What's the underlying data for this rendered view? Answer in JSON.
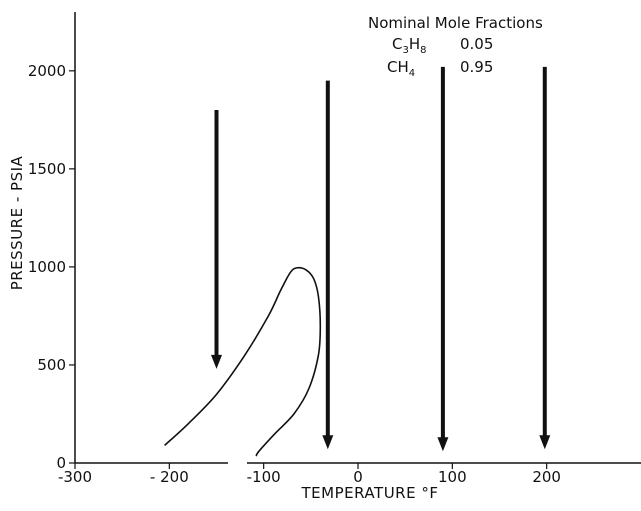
{
  "chart_data": {
    "type": "line",
    "xlabel": "TEMPERATURE °F",
    "ylabel": "PRESSURE - PSIA",
    "xlim": [
      -300,
      300
    ],
    "ylim": [
      0,
      2300
    ],
    "xticks": [
      -300,
      -200,
      -100,
      0,
      100,
      200
    ],
    "xtick_labels": [
      "-300",
      "- 200",
      "-100",
      "0",
      "100",
      "200"
    ],
    "yticks": [
      0,
      500,
      1000,
      1500,
      2000
    ],
    "ytick_labels": [
      "0",
      "500",
      "1000",
      "1500",
      "2000"
    ],
    "legend": {
      "title": "Nominal Mole Fractions",
      "entries": [
        {
          "formula_main": "C",
          "formula_sub1": "3",
          "formula_mid": "H",
          "formula_sub2": "8",
          "value": "0.05"
        },
        {
          "formula_main": "CH",
          "formula_sub1": "4",
          "formula_mid": "",
          "formula_sub2": "",
          "value": "0.95"
        }
      ]
    },
    "series": [
      {
        "type": "curve",
        "points": [
          [
            -205,
            90
          ],
          [
            -180,
            200
          ],
          [
            -150,
            350
          ],
          [
            -120,
            550
          ],
          [
            -95,
            750
          ],
          [
            -82,
            880
          ],
          [
            -72,
            970
          ],
          [
            -65,
            995
          ],
          [
            -55,
            985
          ],
          [
            -47,
            940
          ],
          [
            -42,
            850
          ],
          [
            -40,
            700
          ],
          [
            -42,
            550
          ],
          [
            -52,
            380
          ],
          [
            -68,
            250
          ],
          [
            -88,
            150
          ],
          [
            -105,
            60
          ],
          [
            -108,
            35
          ]
        ]
      }
    ],
    "arrows": [
      {
        "x": -150,
        "y_start": 1800,
        "y_end": 480
      },
      {
        "x": -32,
        "y_start": 1950,
        "y_end": 70
      },
      {
        "x": 90,
        "y_start": 2020,
        "y_end": 60
      },
      {
        "x": 198,
        "y_start": 2020,
        "y_end": 70
      }
    ],
    "grid": false
  }
}
